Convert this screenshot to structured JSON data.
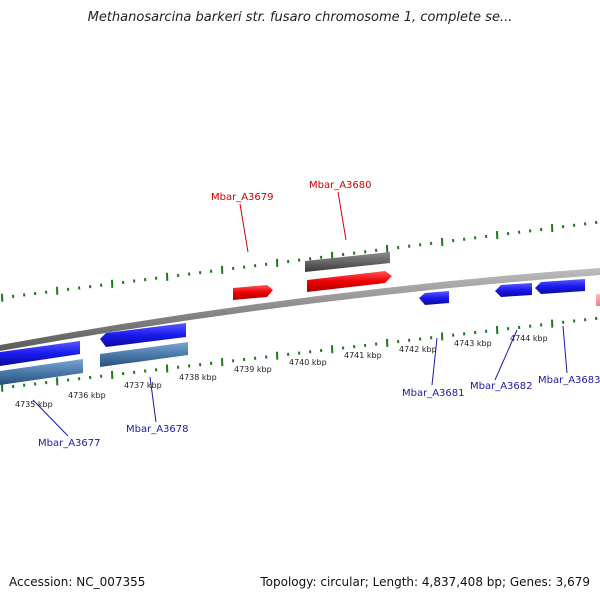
{
  "title": "Methanosarcina barkeri str. fusaro chromosome 1, complete se...",
  "footer": {
    "accession": "Accession: NC_007355",
    "summary": "Topology: circular; Length: 4,837,408 bp; Genes: 3,679"
  },
  "colors": {
    "backbone": "#8c8c8c",
    "ticks": "#1a7a1a",
    "forward_gene": "#ee0000",
    "forward_label": "#cc0000",
    "reverse_gene": "#1a1aee",
    "reverse_label": "#1a1aaa",
    "forward_other": "#666666",
    "reverse_other": "#4a7aaa"
  },
  "scale": {
    "labels": [
      "4735 kbp",
      "4736 kbp",
      "4737 kbp",
      "4738 kbp",
      "4739 kbp",
      "4740 kbp",
      "4741 kbp",
      "4742 kbp",
      "4743 kbp",
      "4744 kbp"
    ]
  },
  "genes": {
    "forward": [
      "Mbar_A3679",
      "Mbar_A3680"
    ],
    "reverse": [
      "Mbar_A3677",
      "Mbar_A3678",
      "Mbar_A3681",
      "Mbar_A3682",
      "Mbar_A3683"
    ]
  }
}
